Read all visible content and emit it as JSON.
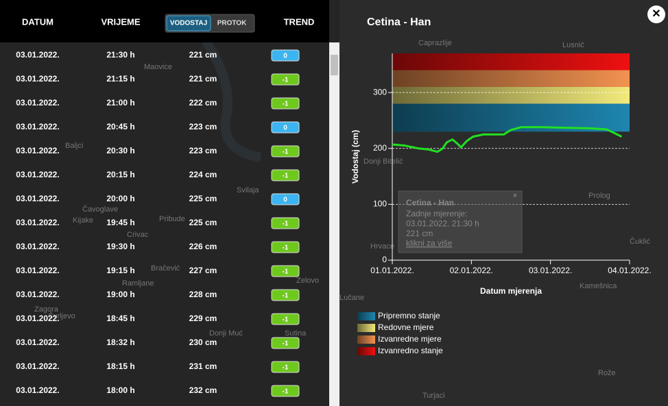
{
  "table": {
    "headers": {
      "date": "DATUM",
      "time": "VRIJEME",
      "toggle": [
        "VODOSTAJ",
        "PROTOK"
      ],
      "trend": "TREND"
    },
    "rows": [
      [
        "03.01.2022.",
        "21:30 h",
        "221 cm",
        "0"
      ],
      [
        "03.01.2022.",
        "21:15 h",
        "221 cm",
        "-1"
      ],
      [
        "03.01.2022.",
        "21:00 h",
        "222 cm",
        "-1"
      ],
      [
        "03.01.2022.",
        "20:45 h",
        "223 cm",
        "0"
      ],
      [
        "03.01.2022.",
        "20:30 h",
        "223 cm",
        "-1"
      ],
      [
        "03.01.2022.",
        "20:15 h",
        "224 cm",
        "-1"
      ],
      [
        "03.01.2022.",
        "20:00 h",
        "225 cm",
        "0"
      ],
      [
        "03.01.2022.",
        "19:45 h",
        "225 cm",
        "-1"
      ],
      [
        "03.01.2022.",
        "19:30 h",
        "226 cm",
        "-1"
      ],
      [
        "03.01.2022.",
        "19:15 h",
        "227 cm",
        "-1"
      ],
      [
        "03.01.2022.",
        "19:00 h",
        "228 cm",
        "-1"
      ],
      [
        "03.01.2022.",
        "18:45 h",
        "229 cm",
        "-1"
      ],
      [
        "03.01.2022.",
        "18:32 h",
        "230 cm",
        "-1"
      ],
      [
        "03.01.2022.",
        "18:15 h",
        "231 cm",
        "-1"
      ],
      [
        "03.01.2022.",
        "18:00 h",
        "232 cm",
        "-1"
      ]
    ]
  },
  "map": {
    "labels": [
      "Maovice",
      "Baljci",
      "Svilaja",
      "Čavoglave",
      "Kijake",
      "Pribude",
      "Crivac",
      "Bračević",
      "Ramljane",
      "Zagora",
      "Čvrljevo",
      "Donji Muć",
      "Sutina",
      "Zelovo",
      "Lučane",
      "Caprazlije",
      "Lusnić",
      "Donji Bitelić",
      "Prolog",
      "Čuklić",
      "Kamešnica",
      "Rože",
      "Turjaci",
      "Hrvace"
    ]
  },
  "chart_data": {
    "type": "line",
    "title": "Cetina - Han",
    "y_label": "Vodostaj (cm)",
    "x_label": "Datum mjerenja",
    "xlim": [
      0,
      3
    ],
    "xticks": [
      {
        "value": 0,
        "label": "01.01.2022."
      },
      {
        "value": 1,
        "label": "02.01.2022."
      },
      {
        "value": 2,
        "label": "03.01.2022."
      },
      {
        "value": 3,
        "label": "04.01.2022."
      }
    ],
    "ylim": [
      0,
      370
    ],
    "yticks": [
      0,
      100,
      200,
      300
    ],
    "grid": true,
    "bands": [
      {
        "name": "Pripremno stanje",
        "color": "#1e86b0",
        "range": [
          230,
          280
        ]
      },
      {
        "name": "Redovne mjere",
        "color": "#f2ea7a",
        "range": [
          280,
          310
        ]
      },
      {
        "name": "Izvanredne mjere",
        "color": "#f29250",
        "range": [
          310,
          340
        ]
      },
      {
        "name": "Izvanredno stanje",
        "color": "#ee1010",
        "range": [
          340,
          370
        ]
      }
    ],
    "series": [
      {
        "color": "#22e022",
        "x": [
          0,
          0.16,
          0.33,
          0.46,
          0.57,
          0.63,
          0.69,
          0.76,
          0.82,
          0.87,
          0.94,
          1.02,
          1.15,
          1.41,
          1.5,
          1.63,
          1.89,
          2.15,
          2.5,
          2.71,
          2.8,
          2.9
        ],
        "values": [
          207,
          205,
          200,
          198,
          194,
          199,
          211,
          216,
          209,
          202,
          213,
          221,
          225,
          225,
          233,
          238,
          238,
          237,
          236,
          234,
          228,
          221
        ]
      }
    ],
    "tooltip": {
      "title": "Cetina - Han",
      "lines": [
        "Zadnje mjerenje:",
        "03.01.2022. 21:30 h",
        "221 cm"
      ],
      "link": "klikni za više"
    }
  }
}
